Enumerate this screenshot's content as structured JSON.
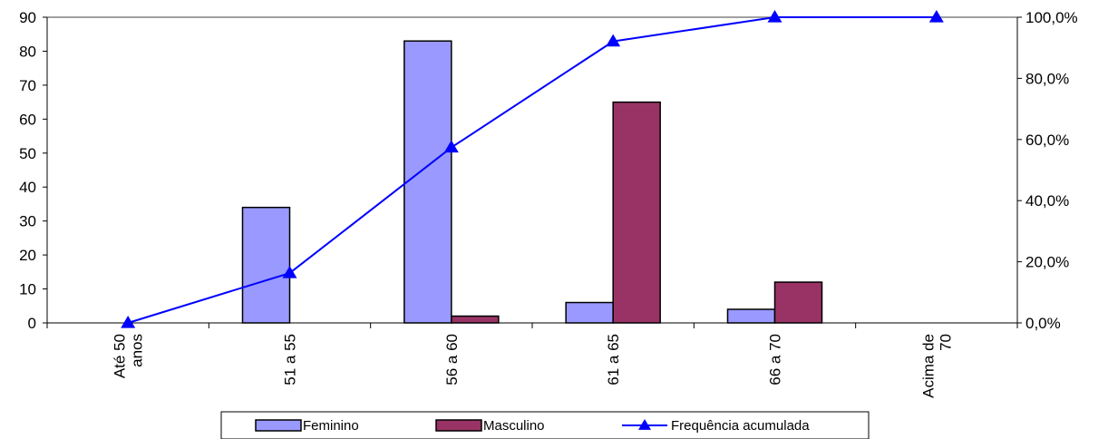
{
  "chart_data": {
    "type": "bar",
    "categories": [
      [
        "Até 50",
        "anos"
      ],
      [
        "51  a  55"
      ],
      [
        "56 a 60"
      ],
      [
        "61 a 65"
      ],
      [
        "66 a 70"
      ],
      [
        "Acima de",
        "70"
      ]
    ],
    "series": [
      {
        "name": "Feminino",
        "type": "bar",
        "axis": "left",
        "color": "#9999FF",
        "values": [
          0,
          34,
          83,
          6,
          4,
          0
        ]
      },
      {
        "name": "Masculino",
        "type": "bar",
        "axis": "left",
        "color": "#993366",
        "values": [
          0,
          0,
          2,
          65,
          12,
          0
        ]
      },
      {
        "name": "Frequência acumulada",
        "type": "line",
        "axis": "right",
        "color": "#0000FF",
        "marker": "triangle",
        "values": [
          0.0,
          16.3,
          57.4,
          92.1,
          100.0,
          100.0
        ]
      }
    ],
    "y_left": {
      "min": 0,
      "max": 90,
      "ticks": [
        "0",
        "10",
        "20",
        "30",
        "40",
        "50",
        "60",
        "70",
        "80",
        "90"
      ]
    },
    "y_right": {
      "min": 0,
      "max": 100,
      "ticks": [
        "0,0%",
        "20,0%",
        "40,0%",
        "60,0%",
        "80,0%",
        "100,0%"
      ]
    },
    "legend": {
      "position": "bottom",
      "items": [
        "Feminino",
        "Masculino",
        "Frequência acumulada"
      ]
    },
    "grid": false
  }
}
